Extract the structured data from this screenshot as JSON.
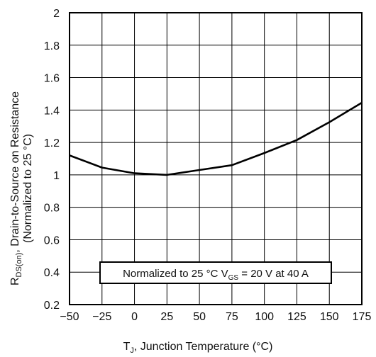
{
  "chart_data": {
    "type": "line",
    "title": "",
    "xlabel": {
      "main": "T",
      "sub": "J",
      "rest": ", Junction Temperature (°C)"
    },
    "ylabel": {
      "line1_main": "R",
      "line1_sub": "DS(on)",
      "line1_rest": ", Drain-to-Source on Resistance",
      "line2": "(Normalized to 25 °C)"
    },
    "xlim": [
      -50,
      175
    ],
    "ylim": [
      0.2,
      2
    ],
    "x_ticks": [
      -50,
      -25,
      0,
      25,
      50,
      75,
      100,
      125,
      150,
      175
    ],
    "x_tick_labels": [
      "−50",
      "−25",
      "0",
      "25",
      "50",
      "75",
      "100",
      "125",
      "150",
      "175"
    ],
    "y_ticks": [
      0.2,
      0.4,
      0.6,
      0.8,
      1,
      1.2,
      1.4,
      1.6,
      1.8,
      2
    ],
    "y_tick_labels": [
      "0.2",
      "0.4",
      "0.6",
      "0.8",
      "1",
      "1.2",
      "1.4",
      "1.6",
      "1.8",
      "2"
    ],
    "grid": true,
    "series": [
      {
        "x": [
          -50,
          -25,
          0,
          25,
          50,
          75,
          100,
          125,
          150,
          175
        ],
        "y": [
          1.12,
          1.045,
          1.01,
          1.0,
          1.03,
          1.06,
          1.135,
          1.215,
          1.325,
          1.445
        ],
        "color": "#000000"
      }
    ],
    "annotation": {
      "prefix": "Normalized to 25 °C V",
      "sub": "GS",
      "suffix": " = 20 V at 40 A"
    }
  }
}
